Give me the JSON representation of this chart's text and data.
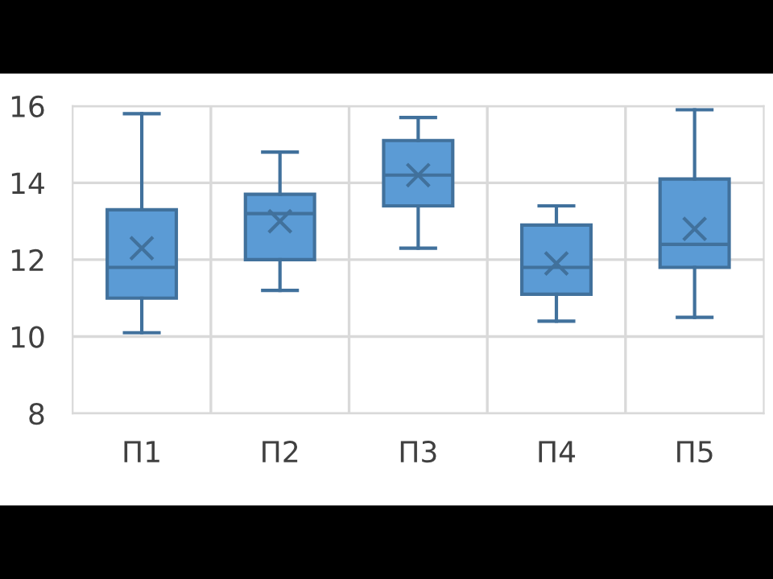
{
  "chart_data": {
    "type": "box",
    "categories": [
      "П1",
      "П2",
      "П3",
      "П4",
      "П5"
    ],
    "boxes": [
      {
        "low": 10.1,
        "q1": 11.0,
        "median": 11.8,
        "q3": 13.3,
        "high": 15.8,
        "mean": 12.3
      },
      {
        "low": 11.2,
        "q1": 12.0,
        "median": 13.2,
        "q3": 13.7,
        "high": 14.8,
        "mean": 13.0
      },
      {
        "low": 12.3,
        "q1": 13.4,
        "median": 14.2,
        "q3": 15.1,
        "high": 15.7,
        "mean": 14.2
      },
      {
        "low": 10.4,
        "q1": 11.1,
        "median": 11.8,
        "q3": 12.9,
        "high": 13.4,
        "mean": 11.9
      },
      {
        "low": 10.5,
        "q1": 11.8,
        "median": 12.4,
        "q3": 14.1,
        "high": 15.9,
        "mean": 12.8
      }
    ],
    "color": "#5b9bd5",
    "ylim": [
      8,
      16
    ],
    "yticks": [
      8,
      10,
      12,
      14,
      16
    ],
    "grid": true,
    "marker": "cross"
  }
}
